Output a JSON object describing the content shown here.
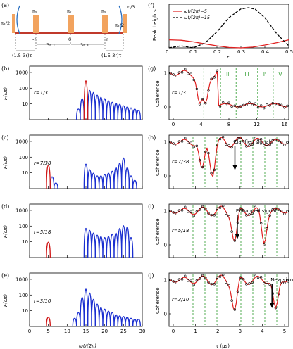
{
  "figure": {
    "panels": {
      "a": "(a)",
      "b": "(b)",
      "c": "(c)",
      "d": "(d)",
      "e": "(e)",
      "f": "(f)",
      "g": "(g)",
      "h": "(h)",
      "i": "(i)",
      "j": "(j)"
    },
    "sequence": {
      "pi_x_half_left": "πₓ/2",
      "pi_x_half_right": "πₓ/2",
      "pi_y": "πᵧ",
      "n_over_3": "n/3",
      "neg_r": "-r",
      "zero": "0",
      "pos_r": "r",
      "three_r_tau_left": "3r τ",
      "three_r_tau_right": "3r τ",
      "edge_left": "(1.5-3r)τ",
      "edge_right": "(1.5-3r)τ"
    },
    "left_column": {
      "ylabel": "F(ωt)",
      "xlabel": "ωt/(2π)",
      "yticks": [
        "1000",
        "100",
        "10"
      ],
      "xticks": [
        "0",
        "5",
        "10",
        "15",
        "20",
        "25",
        "30"
      ],
      "rows": [
        {
          "label": "r=1/3",
          "panel": "b",
          "peak_red": 15,
          "red_h": 2000
        },
        {
          "label": "r=7/38",
          "panel": "c",
          "peak_red": 5,
          "red_h": 100
        },
        {
          "label": "r=5/18",
          "panel": "d",
          "peak_red": 5,
          "red_h": 20
        },
        {
          "label": "r=3/10",
          "panel": "e",
          "peak_red": 5,
          "red_h": 6
        }
      ]
    },
    "right_column": {
      "ylabel": "Coherence",
      "xlabel": "τ (μs)",
      "yticks": [
        "1",
        "0"
      ],
      "g_xticks": [
        "0",
        "4",
        "8",
        "12",
        "16"
      ],
      "xticks": [
        "0",
        "1",
        "2",
        "3",
        "4",
        "5"
      ],
      "g_regions": [
        "I",
        "II",
        "III",
        "I'",
        "IV"
      ],
      "rows": [
        {
          "label": "r=1/3",
          "panel": "g"
        },
        {
          "label": "r=7/38",
          "panel": "h",
          "annotation": "Clarified signals"
        },
        {
          "label": "r=5/18",
          "panel": "i",
          "annotation": "Enhanced signal"
        },
        {
          "label": "r=3/10",
          "panel": "j",
          "annotation": "New signal"
        }
      ]
    }
  },
  "chart_data": [
    {
      "type": "line",
      "panel": "f",
      "ylabel": "Peak heights",
      "xlabel": "r",
      "xlim": [
        0,
        0.5
      ],
      "ylim": [
        0,
        1
      ],
      "xticks": [
        "0",
        "0.1",
        "0.2",
        "0.3",
        "0.4",
        "0.5"
      ],
      "legend_placement": "top-left",
      "series": [
        {
          "name": "ωt/(2π)=5",
          "color": "#e02020",
          "style": "solid",
          "x": [
            0,
            0.05,
            0.1,
            0.15,
            0.2,
            0.25,
            0.3,
            0.35,
            0.4,
            0.45,
            0.5
          ],
          "y": [
            0.2,
            0.19,
            0.15,
            0.1,
            0.05,
            0.01,
            0.0,
            0.02,
            0.07,
            0.13,
            0.2
          ]
        },
        {
          "name": "ωt/(2π)=15",
          "color": "#000000",
          "style": "dashed",
          "x": [
            0,
            0.05,
            0.1,
            0.15,
            0.2,
            0.25,
            0.3,
            0.333,
            0.36,
            0.4,
            0.45,
            0.5
          ],
          "y": [
            0.0,
            0.05,
            0.0,
            0.12,
            0.4,
            0.75,
            0.97,
            1.0,
            0.96,
            0.75,
            0.35,
            0.05
          ]
        }
      ]
    }
  ]
}
